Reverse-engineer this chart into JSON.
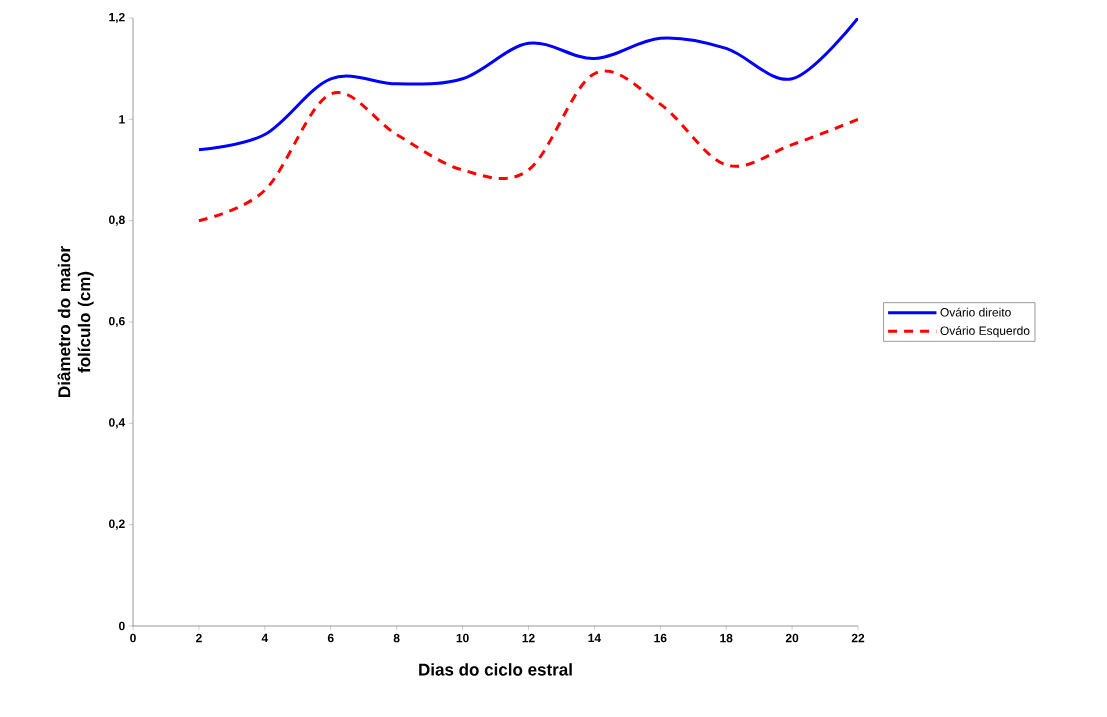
{
  "chart_data": {
    "type": "line",
    "xlabel": "Dias do ciclo estral",
    "ylabel": "Diâmetro do maior folículo (cm)",
    "x": [
      2,
      4,
      6,
      8,
      10,
      12,
      14,
      16,
      18,
      20,
      22
    ],
    "series": [
      {
        "name": "Ovário direito",
        "color": "#0000ff",
        "line_style": "solid",
        "values": [
          0.94,
          0.97,
          1.08,
          1.07,
          1.08,
          1.15,
          1.12,
          1.16,
          1.14,
          1.08,
          1.2
        ]
      },
      {
        "name": "Ovário Esquerdo",
        "color": "#ff0000",
        "line_style": "dashed",
        "values": [
          0.8,
          0.86,
          1.05,
          0.97,
          0.9,
          0.9,
          1.09,
          1.03,
          0.91,
          0.95,
          1.0
        ]
      }
    ],
    "xlim": [
      0,
      22
    ],
    "xticks": [
      0,
      2,
      4,
      6,
      8,
      10,
      12,
      14,
      16,
      18,
      20,
      22
    ],
    "ylim": [
      0,
      1.2
    ],
    "yticks": [
      0,
      {
        "value": 0.2,
        "label": "0,2"
      },
      {
        "value": 0.4,
        "label": "0,4"
      },
      {
        "value": 0.6,
        "label": "0,6"
      },
      {
        "value": 0.8,
        "label": "0,8"
      },
      1,
      {
        "value": 1.2,
        "label": "1,2"
      }
    ],
    "legend": "right",
    "grid": false,
    "marker": "none"
  }
}
